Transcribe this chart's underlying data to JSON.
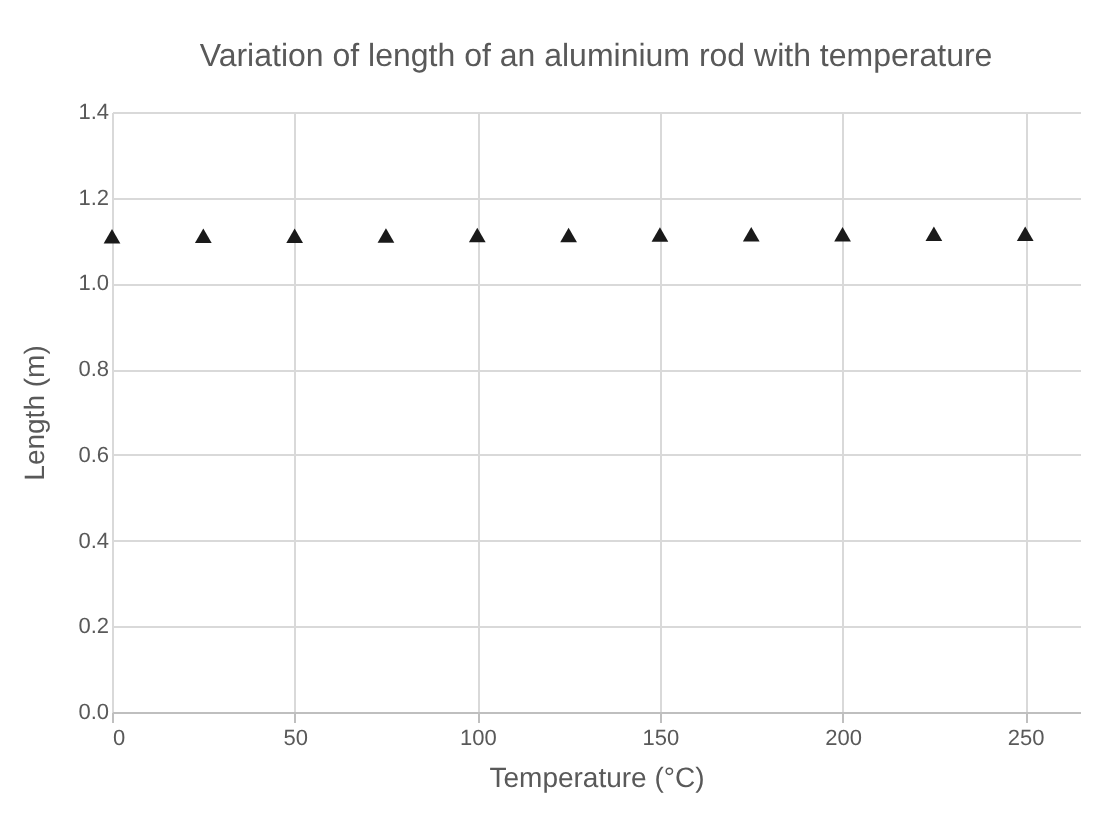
{
  "chart_data": {
    "type": "scatter",
    "title": "Variation of length of an aluminium rod with temperature",
    "xlabel": "Temperature (°C)",
    "ylabel": "Length (m)",
    "x": [
      0,
      25,
      50,
      75,
      100,
      125,
      150,
      175,
      200,
      225,
      250
    ],
    "series": [
      {
        "color": "#1a1a1a",
        "values": [
          1.11,
          1.111,
          1.111,
          1.112,
          1.113,
          1.113,
          1.114,
          1.115,
          1.115,
          1.116,
          1.116
        ]
      }
    ],
    "xlim": [
      0,
      265
    ],
    "xticks": [
      0,
      50,
      100,
      150,
      200,
      250
    ],
    "ylim": [
      0,
      1.4
    ],
    "yticks": [
      {
        "value": 0,
        "label": "0.0"
      },
      {
        "value": 0.2,
        "label": "0.2"
      },
      {
        "value": 0.4,
        "label": "0.4"
      },
      {
        "value": 0.6,
        "label": "0.6"
      },
      {
        "value": 0.8,
        "label": "0.8"
      },
      {
        "value": 1.0,
        "label": "1.0"
      },
      {
        "value": 1.2,
        "label": "1.2"
      },
      {
        "value": 1.4,
        "label": "1.4"
      }
    ],
    "grid": true,
    "marker": "triangle",
    "legend": false
  }
}
